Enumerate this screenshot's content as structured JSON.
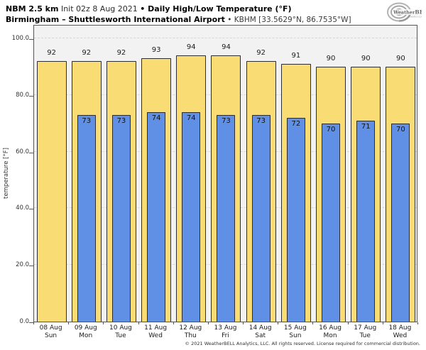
{
  "header": {
    "title_bold1": "NBM 2.5 km",
    "title_regular1": " Init 02z 8 Aug 2021 ",
    "title_bold2": "• Daily High/Low Temperature (°F)",
    "subtitle_bold": "Birmingham – Shuttlesworth International Airport",
    "subtitle_regular": " • KBHM [33.5629°N, 86.7535°W]"
  },
  "logo": {
    "brand_part1": "Weather",
    "brand_part2": "BELL",
    "brand_sub": "Analytics LLC"
  },
  "chart_data": {
    "type": "bar",
    "title": "NBM 2.5 km Init 02z 8 Aug 2021 • Daily High/Low Temperature (°F)",
    "subtitle": "Birmingham – Shuttlesworth International Airport • KBHM [33.5629°N, 86.7535°W]",
    "categories": [
      "08 Aug\nSun",
      "09 Aug\nMon",
      "10 Aug\nTue",
      "11 Aug\nWed",
      "12 Aug\nThu",
      "13 Aug\nFri",
      "14 Aug\nSat",
      "15 Aug\nSun",
      "16 Aug\nMon",
      "17 Aug\nTue",
      "18 Aug\nWed"
    ],
    "series": [
      {
        "name": "daily high",
        "color": "#FADC74",
        "values": [
          92,
          92,
          92,
          93,
          94,
          94,
          92,
          91,
          90,
          90,
          90
        ]
      },
      {
        "name": "daily low",
        "color": "#6090E6",
        "values": [
          null,
          73,
          73,
          74,
          74,
          73,
          73,
          72,
          70,
          71,
          70
        ]
      }
    ],
    "xlabel": "",
    "ylabel": "temperature [°F]",
    "ylim": [
      0,
      105
    ],
    "yticks": [
      0,
      20,
      40,
      60,
      80,
      100
    ],
    "ytick_labels": [
      "0.0",
      "20.0",
      "40.0",
      "60.0",
      "80.0",
      "100.0"
    ],
    "grid": "horizontal-dashed",
    "legend": "none",
    "plot_bg": "#f2f2f2",
    "bar_border": "#2e2e2e"
  },
  "footer": {
    "copyright": "© 2021 WeatherBELL Analytics, LLC. All rights reserved. License required for commercial distribution."
  }
}
